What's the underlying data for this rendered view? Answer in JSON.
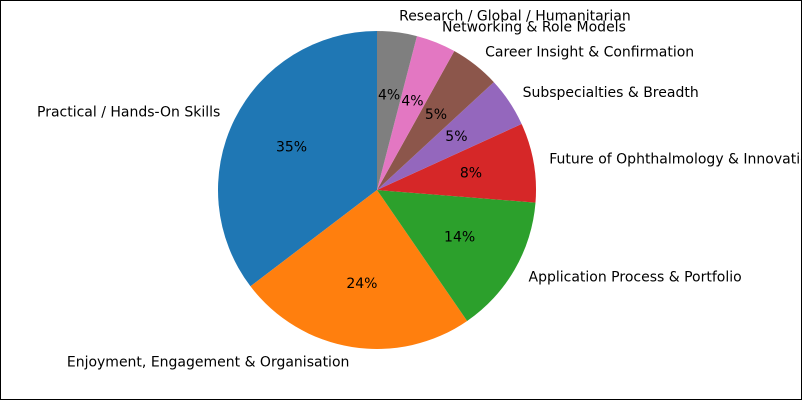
{
  "chart_data": {
    "type": "pie",
    "title": "",
    "start_angle_deg": 90,
    "direction": "counterclockwise",
    "slices": [
      {
        "label": "Practical / Hands-On Skills",
        "value": 35,
        "pct_label": "35%",
        "color": "#1f77b4"
      },
      {
        "label": "Enjoyment, Engagement & Organisation",
        "value": 24,
        "pct_label": "24%",
        "color": "#ff7f0e"
      },
      {
        "label": "Application Process & Portfolio",
        "value": 14,
        "pct_label": "14%",
        "color": "#2ca02c"
      },
      {
        "label": "Future of Ophthalmology & Innovation",
        "value": 8,
        "pct_label": "8%",
        "color": "#d62728"
      },
      {
        "label": "Subspecialties & Breadth",
        "value": 5,
        "pct_label": "5%",
        "color": "#9467bd"
      },
      {
        "label": "Career Insight & Confirmation",
        "value": 5,
        "pct_label": "5%",
        "color": "#8c564b"
      },
      {
        "label": "Networking & Role Models",
        "value": 4,
        "pct_label": "4%",
        "color": "#e377c2"
      },
      {
        "label": "Research / Global / Humanitarian",
        "value": 4,
        "pct_label": "4%",
        "color": "#7f7f7f"
      }
    ]
  }
}
